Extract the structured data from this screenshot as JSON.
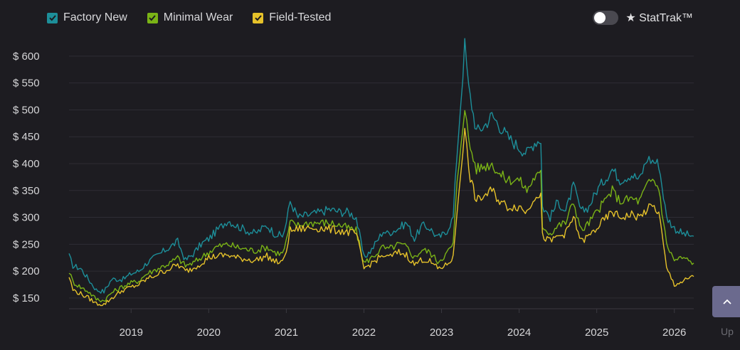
{
  "legend": {
    "items": [
      {
        "label": "Factory New",
        "color": "#1d8f9a"
      },
      {
        "label": "Minimal Wear",
        "color": "#7ab316"
      },
      {
        "label": "Field-Tested",
        "color": "#e6c22a"
      }
    ]
  },
  "toggle": {
    "label": "★ StatTrak™",
    "on": false
  },
  "scroll_top": {
    "label": "Up",
    "icon": "chevron-up-icon"
  },
  "chart_data": {
    "type": "line",
    "title": "",
    "xlabel": "",
    "ylabel": "",
    "y_ticks": [
      "$ 600",
      "$ 550",
      "$ 500",
      "$ 450",
      "$ 400",
      "$ 350",
      "$ 300",
      "$ 250",
      "$ 200",
      "$ 150"
    ],
    "y_tick_values": [
      600,
      550,
      500,
      450,
      400,
      350,
      300,
      250,
      200,
      150
    ],
    "x_ticks": [
      "2019",
      "2020",
      "2021",
      "2022",
      "2023",
      "2024",
      "2025",
      "2026"
    ],
    "x_tick_values": [
      2019,
      2020,
      2021,
      2022,
      2023,
      2024,
      2025,
      2026
    ],
    "xlim": [
      2018.2,
      2026.25
    ],
    "ylim": [
      130,
      625
    ],
    "grid": true,
    "series": [
      {
        "name": "Factory New",
        "color": "#1d8f9a",
        "x": [
          2018.2,
          2018.25,
          2018.35,
          2018.45,
          2018.55,
          2018.65,
          2018.75,
          2018.9,
          2019.0,
          2019.1,
          2019.2,
          2019.35,
          2019.5,
          2019.6,
          2019.7,
          2019.8,
          2019.9,
          2020.0,
          2020.1,
          2020.25,
          2020.35,
          2020.5,
          2020.6,
          2020.75,
          2020.85,
          2020.95,
          2021.0,
          2021.05,
          2021.15,
          2021.3,
          2021.45,
          2021.55,
          2021.7,
          2021.8,
          2021.9,
          2022.0,
          2022.1,
          2022.25,
          2022.3,
          2022.45,
          2022.55,
          2022.65,
          2022.75,
          2022.85,
          2022.95,
          2023.05,
          2023.15,
          2023.2,
          2023.25,
          2023.3,
          2023.35,
          2023.45,
          2023.55,
          2023.65,
          2023.75,
          2023.85,
          2024.0,
          2024.1,
          2024.2,
          2024.28,
          2024.3,
          2024.4,
          2024.5,
          2024.6,
          2024.7,
          2024.8,
          2024.9,
          2025.0,
          2025.1,
          2025.2,
          2025.3,
          2025.45,
          2025.55,
          2025.65,
          2025.72,
          2025.8,
          2025.9,
          2026.0,
          2026.1,
          2026.25
        ],
        "values": [
          228,
          210,
          205,
          185,
          165,
          162,
          185,
          185,
          195,
          200,
          215,
          230,
          245,
          255,
          220,
          232,
          250,
          260,
          275,
          295,
          285,
          275,
          270,
          285,
          270,
          265,
          290,
          330,
          300,
          305,
          310,
          315,
          310,
          310,
          300,
          225,
          240,
          275,
          270,
          280,
          290,
          260,
          285,
          280,
          262,
          270,
          300,
          420,
          520,
          620,
          540,
          460,
          470,
          490,
          470,
          450,
          430,
          420,
          440,
          445,
          320,
          300,
          330,
          310,
          360,
          310,
          320,
          350,
          370,
          390,
          370,
          380,
          370,
          410,
          405,
          400,
          300,
          280,
          270,
          265
        ]
      },
      {
        "name": "Minimal Wear",
        "color": "#7ab316",
        "x": [
          2018.2,
          2018.25,
          2018.35,
          2018.45,
          2018.55,
          2018.65,
          2018.75,
          2018.9,
          2019.0,
          2019.1,
          2019.2,
          2019.35,
          2019.5,
          2019.6,
          2019.7,
          2019.8,
          2019.9,
          2020.0,
          2020.1,
          2020.25,
          2020.35,
          2020.5,
          2020.6,
          2020.75,
          2020.85,
          2020.95,
          2021.0,
          2021.05,
          2021.15,
          2021.3,
          2021.45,
          2021.55,
          2021.7,
          2021.8,
          2021.9,
          2022.0,
          2022.1,
          2022.25,
          2022.3,
          2022.45,
          2022.55,
          2022.65,
          2022.75,
          2022.85,
          2022.95,
          2023.05,
          2023.15,
          2023.2,
          2023.25,
          2023.3,
          2023.35,
          2023.45,
          2023.55,
          2023.65,
          2023.75,
          2023.85,
          2024.0,
          2024.1,
          2024.2,
          2024.28,
          2024.3,
          2024.4,
          2024.5,
          2024.6,
          2024.7,
          2024.8,
          2024.9,
          2025.0,
          2025.1,
          2025.2,
          2025.3,
          2025.45,
          2025.55,
          2025.65,
          2025.72,
          2025.8,
          2025.9,
          2026.0,
          2026.1,
          2026.25
        ],
        "values": [
          200,
          180,
          170,
          162,
          148,
          145,
          160,
          172,
          178,
          182,
          195,
          205,
          215,
          225,
          210,
          215,
          225,
          235,
          245,
          250,
          245,
          240,
          238,
          245,
          235,
          232,
          255,
          290,
          285,
          290,
          290,
          290,
          285,
          280,
          275,
          215,
          225,
          245,
          240,
          250,
          245,
          225,
          240,
          235,
          218,
          230,
          250,
          360,
          440,
          510,
          440,
          390,
          395,
          400,
          380,
          370,
          370,
          350,
          375,
          380,
          285,
          270,
          285,
          290,
          330,
          275,
          290,
          310,
          330,
          350,
          330,
          335,
          330,
          360,
          370,
          355,
          250,
          220,
          225,
          215
        ]
      },
      {
        "name": "Field-Tested",
        "color": "#e6c22a",
        "x": [
          2018.2,
          2018.25,
          2018.35,
          2018.45,
          2018.55,
          2018.65,
          2018.75,
          2018.9,
          2019.0,
          2019.1,
          2019.2,
          2019.35,
          2019.5,
          2019.6,
          2019.7,
          2019.8,
          2019.9,
          2020.0,
          2020.1,
          2020.25,
          2020.35,
          2020.5,
          2020.6,
          2020.75,
          2020.85,
          2020.95,
          2021.0,
          2021.05,
          2021.15,
          2021.3,
          2021.45,
          2021.55,
          2021.7,
          2021.8,
          2021.9,
          2022.0,
          2022.1,
          2022.25,
          2022.3,
          2022.45,
          2022.55,
          2022.65,
          2022.75,
          2022.85,
          2022.95,
          2023.05,
          2023.15,
          2023.2,
          2023.25,
          2023.3,
          2023.35,
          2023.45,
          2023.55,
          2023.65,
          2023.75,
          2023.85,
          2024.0,
          2024.1,
          2024.2,
          2024.28,
          2024.3,
          2024.4,
          2024.5,
          2024.6,
          2024.7,
          2024.8,
          2024.9,
          2025.0,
          2025.1,
          2025.2,
          2025.3,
          2025.45,
          2025.55,
          2025.65,
          2025.72,
          2025.8,
          2025.9,
          2026.0,
          2026.1,
          2026.25
        ],
        "values": [
          190,
          165,
          158,
          150,
          140,
          138,
          150,
          165,
          170,
          175,
          185,
          195,
          205,
          212,
          200,
          205,
          215,
          225,
          228,
          230,
          225,
          222,
          220,
          228,
          218,
          215,
          240,
          275,
          278,
          280,
          280,
          278,
          275,
          272,
          270,
          205,
          215,
          230,
          225,
          235,
          230,
          212,
          222,
          218,
          205,
          210,
          225,
          310,
          390,
          470,
          385,
          330,
          340,
          350,
          330,
          320,
          320,
          310,
          340,
          345,
          265,
          255,
          265,
          270,
          300,
          255,
          265,
          280,
          295,
          310,
          300,
          305,
          300,
          315,
          320,
          310,
          205,
          175,
          180,
          190
        ]
      }
    ]
  }
}
